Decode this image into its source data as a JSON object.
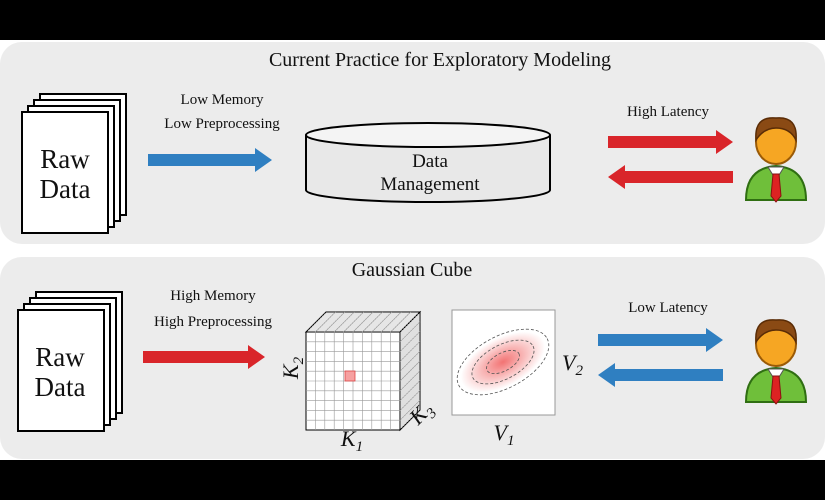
{
  "panels": [
    {
      "title": "Current Practice for Exploratory Modeling",
      "raw_data": [
        "Raw",
        "Data"
      ],
      "input_label": [
        "Low Memory",
        "Low Preprocessing"
      ],
      "store": [
        "Data",
        "Management"
      ],
      "latency": "High Latency"
    },
    {
      "title": "Gaussian Cube",
      "raw_data": [
        "Raw",
        "Data"
      ],
      "input_label": [
        "High Memory",
        "High Preprocessing"
      ],
      "cube_axes": [
        {
          "base": "K",
          "sub": "1"
        },
        {
          "base": "K",
          "sub": "2"
        },
        {
          "base": "K",
          "sub": "3"
        }
      ],
      "density_axes": [
        {
          "base": "V",
          "sub": "1"
        },
        {
          "base": "V",
          "sub": "2"
        }
      ],
      "latency": "Low Latency"
    }
  ]
}
